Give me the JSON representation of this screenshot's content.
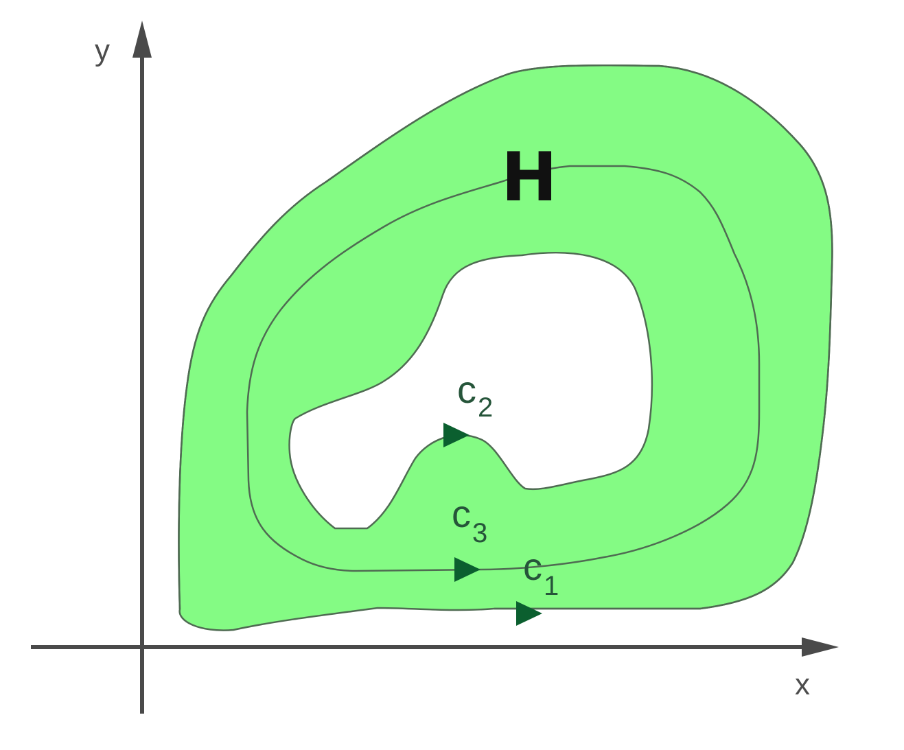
{
  "axes": {
    "x_label": "x",
    "y_label": "y"
  },
  "region": {
    "label": "H",
    "fill_color": "#84fb84",
    "outline_color": "#4f6b52"
  },
  "curves": {
    "c1": {
      "base": "c",
      "sub": "1"
    },
    "c2": {
      "base": "c",
      "sub": "2"
    },
    "c3": {
      "base": "c",
      "sub": "3"
    }
  },
  "colors": {
    "axis": "#4a4a4a",
    "arrow": "#0b5f2f",
    "curve_label": "#26553a"
  }
}
